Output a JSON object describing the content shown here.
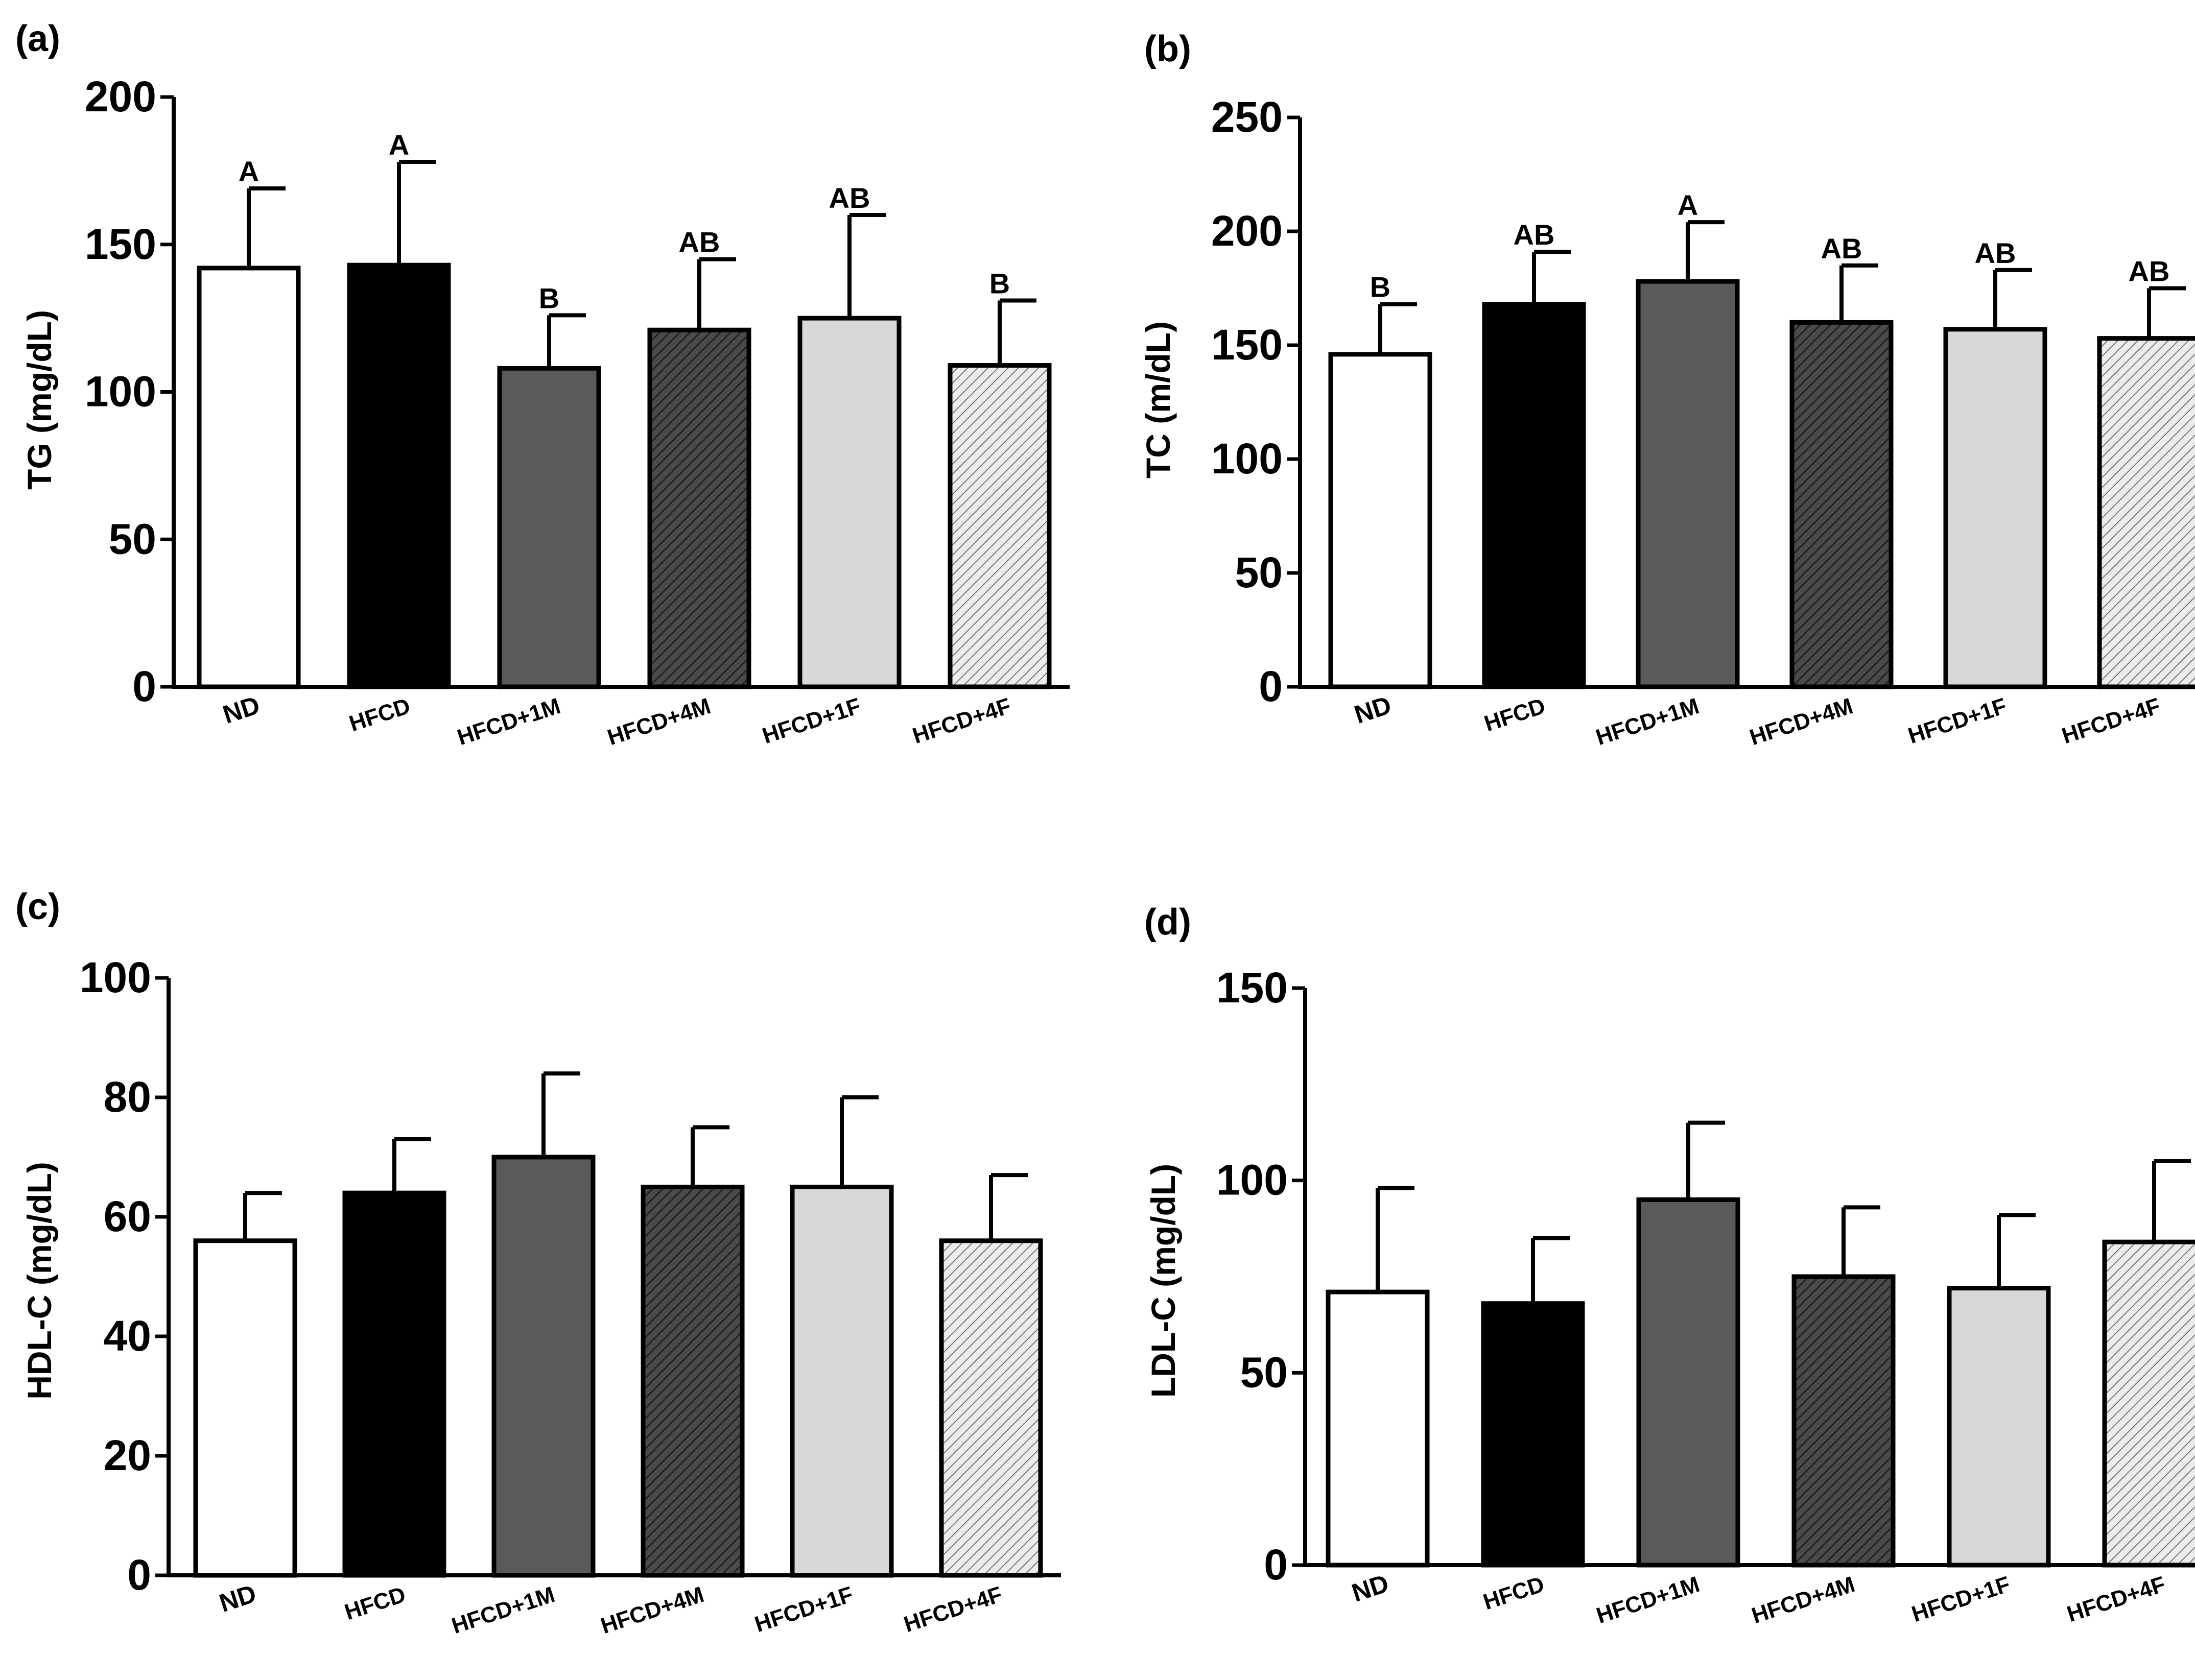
{
  "colors": {
    "axis": "#000000",
    "bar_stroke": "#000000"
  },
  "categories": [
    "ND",
    "HFCD",
    "HFCD+1M",
    "HFCD+4M",
    "HFCD+1F",
    "HFCD+4F"
  ],
  "bar_styles": [
    {
      "fill": "#ffffff",
      "pattern": "none"
    },
    {
      "fill": "#000000",
      "pattern": "none"
    },
    {
      "fill": "#5a5a5a",
      "pattern": "none"
    },
    {
      "fill": "#4a4a4a",
      "pattern": "hatch-dense",
      "hatch_color": "#2a2a2a"
    },
    {
      "fill": "#d8d8d8",
      "pattern": "none"
    },
    {
      "fill": "#e8e8e8",
      "pattern": "hatch-light",
      "hatch_color": "#7a7a7a"
    }
  ],
  "chart_data": [
    {
      "panel": "(a)",
      "type": "bar",
      "ylabel": "TG (mg/dL)",
      "categories": [
        "ND",
        "HFCD",
        "HFCD+1M",
        "HFCD+4M",
        "HFCD+1F",
        "HFCD+4F"
      ],
      "values": [
        142,
        143,
        108,
        121,
        125,
        109
      ],
      "errors": [
        27,
        35,
        18,
        24,
        35,
        22
      ],
      "significance": [
        "A",
        "A",
        "B",
        "AB",
        "AB",
        "B"
      ],
      "ylim": [
        0,
        200
      ],
      "yticks": [
        "0",
        "50",
        "100",
        "150",
        "200"
      ]
    },
    {
      "panel": "(b)",
      "type": "bar",
      "ylabel": "TC (m/dL)",
      "categories": [
        "ND",
        "HFCD",
        "HFCD+1M",
        "HFCD+4M",
        "HFCD+1F",
        "HFCD+4F"
      ],
      "values": [
        146,
        168,
        178,
        160,
        157,
        153
      ],
      "errors": [
        22,
        23,
        26,
        25,
        26,
        22
      ],
      "significance": [
        "B",
        "AB",
        "A",
        "AB",
        "AB",
        "AB"
      ],
      "ylim": [
        0,
        250
      ],
      "yticks": [
        "0",
        "50",
        "100",
        "150",
        "200",
        "250"
      ]
    },
    {
      "panel": "(c)",
      "type": "bar",
      "ylabel": "HDL-C (mg/dL)",
      "categories": [
        "ND",
        "HFCD",
        "HFCD+1M",
        "HFCD+4M",
        "HFCD+1F",
        "HFCD+4F"
      ],
      "values": [
        56,
        64,
        70,
        65,
        65,
        56
      ],
      "errors": [
        8,
        9,
        14,
        10,
        15,
        11
      ],
      "significance": [],
      "ylim": [
        0,
        100
      ],
      "yticks": [
        "0",
        "20",
        "40",
        "60",
        "80",
        "100"
      ]
    },
    {
      "panel": "(d)",
      "type": "bar",
      "ylabel": "LDL-C (mg/dL)",
      "categories": [
        "ND",
        "HFCD",
        "HFCD+1M",
        "HFCD+4M",
        "HFCD+1F",
        "HFCD+4F"
      ],
      "values": [
        71,
        68,
        95,
        75,
        72,
        84
      ],
      "errors": [
        27,
        17,
        20,
        18,
        19,
        21
      ],
      "significance": [],
      "ylim": [
        0,
        150
      ],
      "yticks": [
        "0",
        "50",
        "100",
        "150"
      ]
    }
  ]
}
